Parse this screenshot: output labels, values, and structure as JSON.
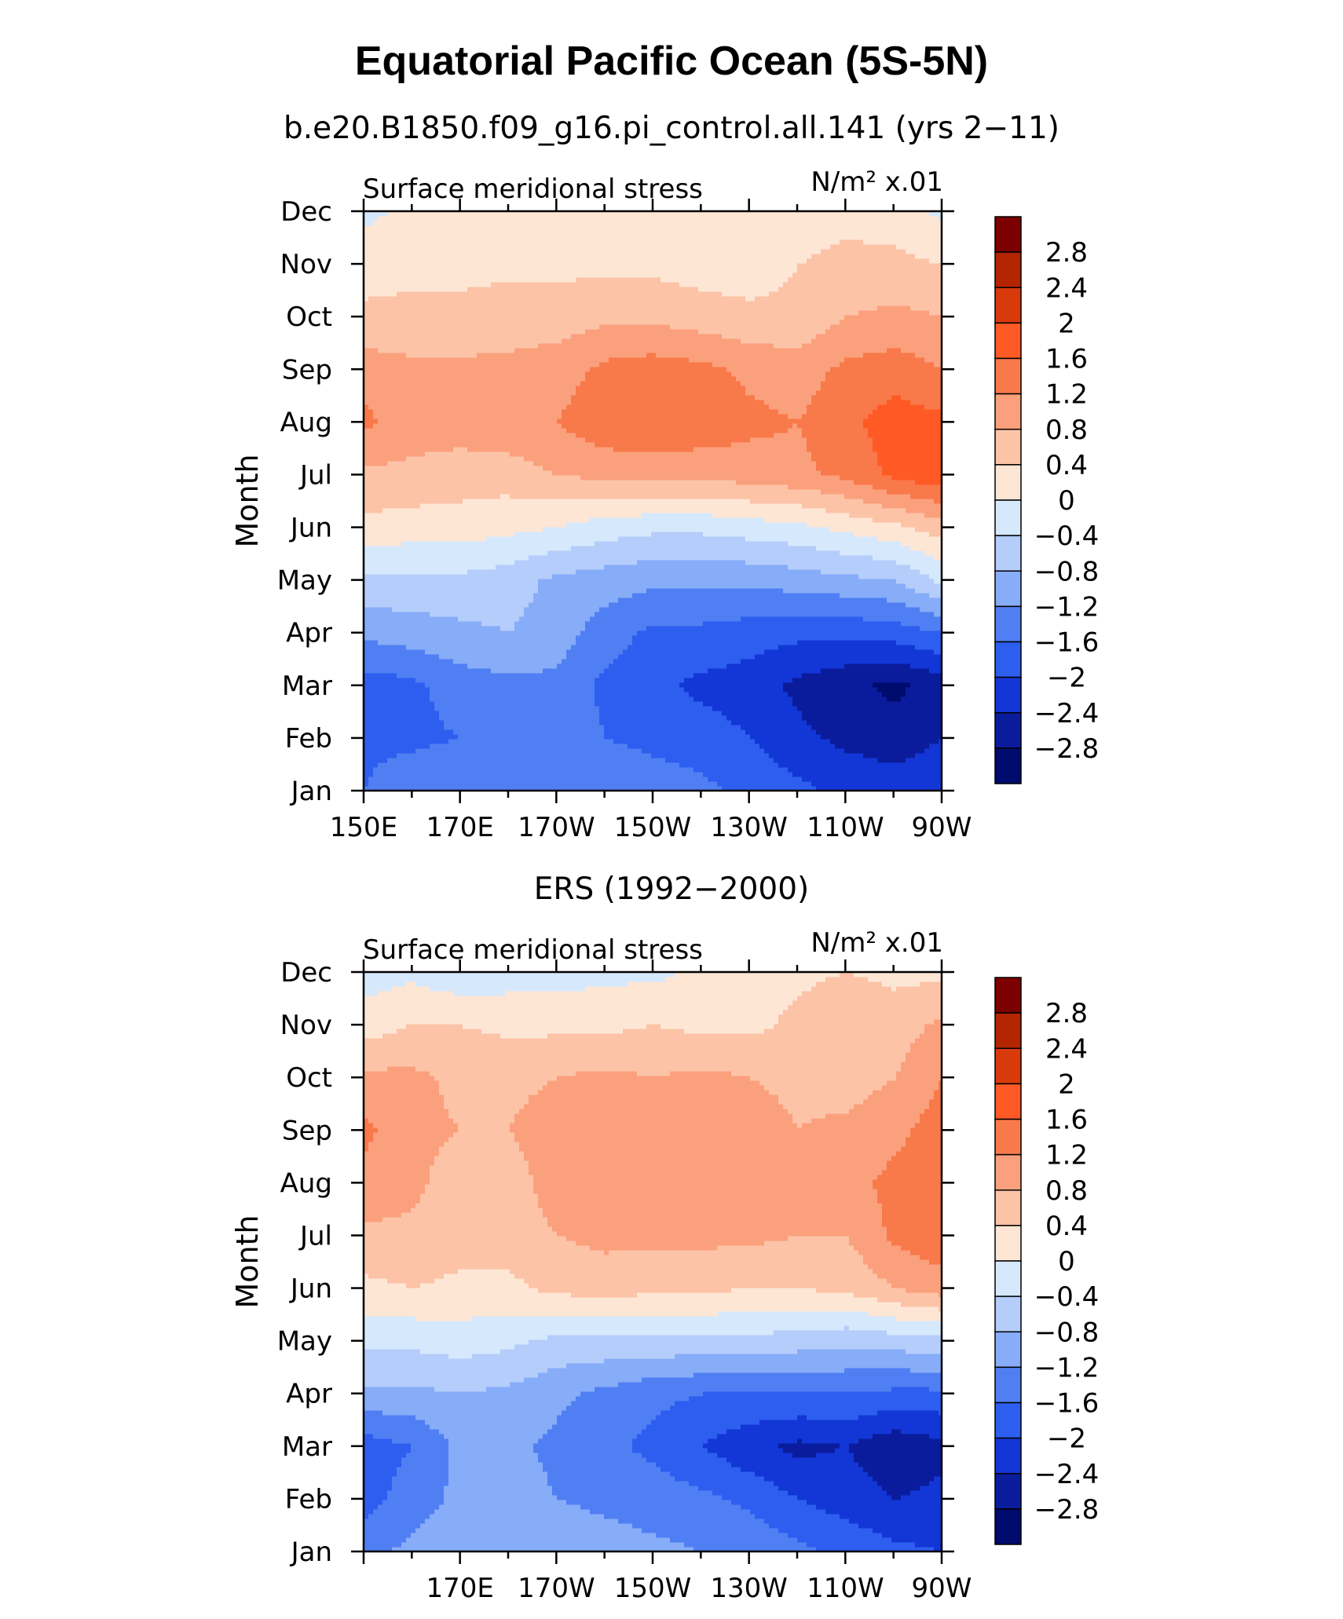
{
  "figure": {
    "title": "Equatorial Pacific Ocean (5S-5N)"
  },
  "colorbar": {
    "levels": [
      "2.8",
      "2.4",
      "2",
      "1.6",
      "1.2",
      "0.8",
      "0.4",
      "0",
      "−0.4",
      "−0.8",
      "−1.2",
      "−1.6",
      "−2",
      "−2.4",
      "−2.8"
    ],
    "colors": [
      "#7d0000",
      "#b32400",
      "#d93a0c",
      "#ff5a26",
      "#f8794a",
      "#fba07c",
      "#fcc3a7",
      "#fee6d5",
      "#d6e8fc",
      "#b4cdfb",
      "#87acf8",
      "#507ff3",
      "#2d5ef0",
      "#1336d6",
      "#0a1c9c",
      "#000b6e"
    ]
  },
  "chart_data": [
    {
      "type": "heatmap",
      "panel_title": "b.e20.B1850.f09_g16.pi_control.all.141 (yrs 2−11)",
      "left_label": "Surface meridional stress",
      "right_label": "N/m² x.01",
      "ylabel": "Month",
      "xlabel": "",
      "x_ticklabels": [
        "150E",
        "170E",
        "170W",
        "150W",
        "130W",
        "110W",
        "90W"
      ],
      "y_ticklabels": [
        "Jan",
        "Feb",
        "Mar",
        "Apr",
        "May",
        "Jun",
        "Jul",
        "Aug",
        "Sep",
        "Oct",
        "Nov",
        "Dec"
      ],
      "x_range": [
        "150E",
        "90W"
      ],
      "y_range": [
        "Jan",
        "Dec"
      ],
      "x_lon": [
        150,
        160,
        170,
        180,
        190,
        200,
        210,
        220,
        230,
        240,
        250,
        260,
        270
      ],
      "y": [
        "Jan",
        "Feb",
        "Mar",
        "Apr",
        "May",
        "Jun",
        "Jul",
        "Aug",
        "Sep",
        "Oct",
        "Nov",
        "Dec"
      ],
      "z": [
        [
          -1.6,
          -1.3,
          -1.2,
          -1.2,
          -1.2,
          -1.3,
          -1.4,
          -1.5,
          -1.7,
          -1.9,
          -2.1,
          -2.2,
          -2.1
        ],
        [
          -1.7,
          -1.7,
          -1.6,
          -1.3,
          -1.3,
          -1.6,
          -1.7,
          -1.8,
          -2.0,
          -2.3,
          -2.5,
          -2.6,
          -2.4
        ],
        [
          -1.8,
          -1.7,
          -1.4,
          -1.3,
          -1.3,
          -1.7,
          -1.9,
          -2.1,
          -2.2,
          -2.5,
          -2.7,
          -2.9,
          -2.6
        ],
        [
          -1.1,
          -1.0,
          -0.9,
          -0.8,
          -1.0,
          -1.4,
          -1.7,
          -1.7,
          -1.8,
          -1.9,
          -1.9,
          -1.8,
          -1.6
        ],
        [
          -0.5,
          -0.5,
          -0.5,
          -0.6,
          -0.9,
          -1.0,
          -1.1,
          -1.1,
          -1.1,
          -1.0,
          -0.9,
          -0.8,
          -0.3
        ],
        [
          0.3,
          0.2,
          0.2,
          0.1,
          0.0,
          -0.2,
          -0.3,
          -0.3,
          -0.2,
          -0.1,
          0.1,
          0.3,
          0.6
        ],
        [
          0.7,
          0.7,
          0.6,
          0.6,
          0.8,
          0.9,
          0.9,
          0.9,
          1.0,
          1.1,
          1.3,
          1.7,
          1.9
        ],
        [
          1.3,
          1.0,
          1.0,
          1.1,
          1.2,
          1.5,
          1.6,
          1.5,
          1.3,
          1.2,
          1.5,
          1.8,
          1.7
        ],
        [
          1.0,
          0.9,
          0.9,
          0.9,
          1.0,
          1.3,
          1.4,
          1.3,
          1.1,
          1.0,
          1.3,
          1.4,
          1.2
        ],
        [
          0.5,
          0.5,
          0.5,
          0.6,
          0.6,
          0.7,
          0.7,
          0.6,
          0.5,
          0.5,
          0.8,
          0.9,
          0.8
        ],
        [
          0.2,
          0.3,
          0.3,
          0.3,
          0.3,
          0.3,
          0.3,
          0.2,
          0.2,
          0.4,
          0.5,
          0.5,
          0.4
        ],
        [
          -0.1,
          0.1,
          0.1,
          0.1,
          0.1,
          0.1,
          0.0,
          0.1,
          0.1,
          0.2,
          0.3,
          0.2,
          -0.1
        ]
      ]
    },
    {
      "type": "heatmap",
      "panel_title": "ERS (1992−2000)",
      "left_label": "Surface meridional stress",
      "right_label": "N/m² x.01",
      "ylabel": "Month",
      "xlabel": "",
      "x_ticklabels": [
        "170E",
        "170W",
        "150W",
        "130W",
        "110W",
        "90W"
      ],
      "y_ticklabels": [
        "Jan",
        "Feb",
        "Mar",
        "Apr",
        "May",
        "Jun",
        "Jul",
        "Aug",
        "Sep",
        "Oct",
        "Nov",
        "Dec"
      ],
      "x_range": [
        "150E",
        "90W"
      ],
      "y_range": [
        "Jan",
        "Dec"
      ],
      "x_lon": [
        150,
        160,
        170,
        180,
        190,
        200,
        210,
        220,
        230,
        240,
        250,
        260,
        270
      ],
      "y": [
        "Jan",
        "Feb",
        "Mar",
        "Apr",
        "May",
        "Jun",
        "Jul",
        "Aug",
        "Sep",
        "Oct",
        "Nov",
        "Dec"
      ],
      "z": [
        [
          -1.3,
          -1.1,
          -0.9,
          -0.8,
          -0.9,
          -1.0,
          -1.1,
          -1.2,
          -1.3,
          -1.5,
          -1.7,
          -1.9,
          -2.0
        ],
        [
          -1.8,
          -1.4,
          -1.1,
          -1.0,
          -1.2,
          -1.3,
          -1.4,
          -1.5,
          -1.7,
          -2.0,
          -2.2,
          -2.4,
          -2.3
        ],
        [
          -1.8,
          -1.6,
          -1.1,
          -1.1,
          -1.3,
          -1.5,
          -1.7,
          -2.0,
          -2.3,
          -2.5,
          -2.4,
          -2.7,
          -2.5
        ],
        [
          -0.9,
          -0.9,
          -0.8,
          -0.9,
          -1.1,
          -1.3,
          -1.5,
          -1.6,
          -1.6,
          -1.6,
          -1.6,
          -1.7,
          -1.7
        ],
        [
          -0.3,
          -0.3,
          -0.2,
          -0.3,
          -0.5,
          -0.5,
          -0.5,
          -0.5,
          -0.5,
          -0.6,
          -0.7,
          -0.6,
          -0.5
        ],
        [
          0.3,
          0.4,
          0.3,
          0.3,
          0.5,
          0.6,
          0.5,
          0.5,
          0.4,
          0.4,
          0.5,
          0.8,
          1.0
        ],
        [
          0.7,
          0.7,
          0.6,
          0.6,
          0.8,
          0.9,
          0.9,
          0.9,
          0.9,
          0.8,
          0.8,
          1.3,
          1.5
        ],
        [
          1.1,
          0.9,
          0.6,
          0.6,
          1.0,
          1.0,
          1.0,
          1.1,
          1.1,
          1.0,
          1.1,
          1.3,
          1.5
        ],
        [
          1.3,
          0.9,
          0.8,
          0.8,
          1.0,
          1.1,
          1.0,
          1.0,
          1.0,
          0.8,
          0.9,
          1.1,
          1.4
        ],
        [
          0.9,
          0.9,
          0.7,
          0.7,
          0.8,
          0.9,
          0.8,
          0.9,
          0.8,
          0.7,
          0.6,
          0.8,
          1.2
        ],
        [
          0.2,
          0.4,
          0.4,
          0.3,
          0.3,
          0.3,
          0.4,
          0.3,
          0.3,
          0.5,
          0.8,
          0.6,
          0.9
        ],
        [
          -0.2,
          -0.1,
          -0.3,
          -0.2,
          -0.2,
          -0.1,
          -0.1,
          0.1,
          0.2,
          0.3,
          0.4,
          0.3,
          0.3
        ]
      ]
    }
  ]
}
